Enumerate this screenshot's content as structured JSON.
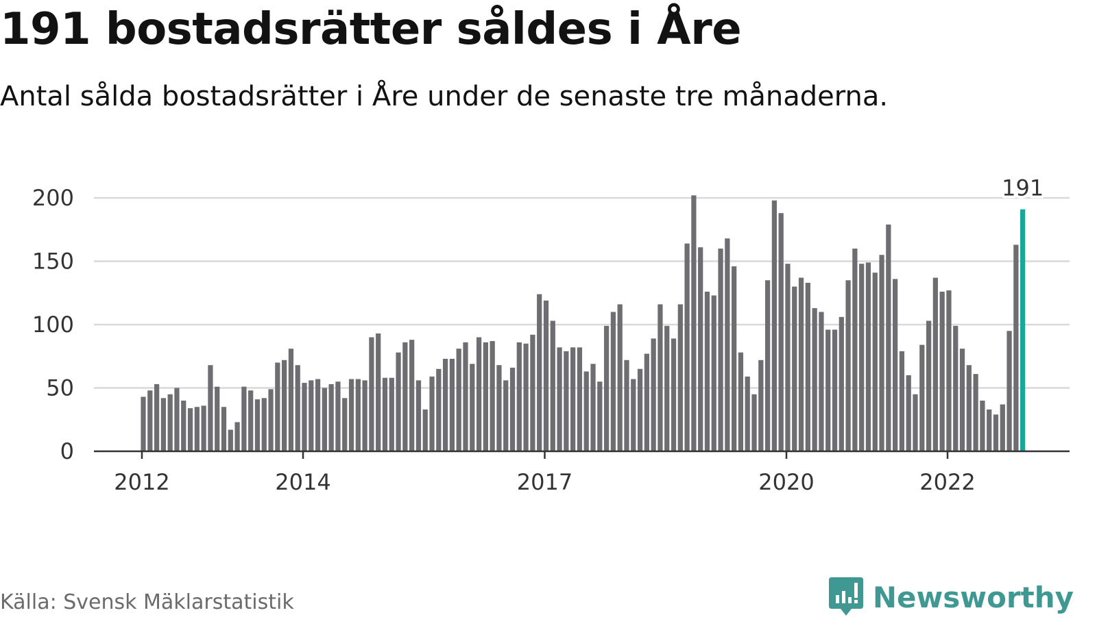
{
  "title": "191 bostadsrätter såldes i Åre",
  "subtitle": "Antal sålda bostadsrätter i Åre under de senaste tre månaderna.",
  "source": "Källa: Svensk Mäklarstatistik",
  "brand": "Newsworthy",
  "colors": {
    "bar": "#6e6d72",
    "highlight": "#17a79b",
    "grid": "#d9d9d9",
    "axis": "#333333",
    "brand": "#3f9992"
  },
  "chart_data": {
    "type": "bar",
    "title": "191 bostadsrätter såldes i Åre",
    "subtitle": "Antal sålda bostadsrätter i Åre under de senaste tre månaderna.",
    "ylim": [
      0,
      200
    ],
    "yticks": [
      0,
      50,
      100,
      150,
      200
    ],
    "xlim": [
      2011.4,
      2023.5
    ],
    "xticks": [
      {
        "label": "2012",
        "value": 2012
      },
      {
        "label": "2014",
        "value": 2014
      },
      {
        "label": "2017",
        "value": 2017
      },
      {
        "label": "2020",
        "value": 2020
      },
      {
        "label": "2022",
        "value": 2022
      }
    ],
    "grid": true,
    "x_start": 2012.0,
    "x_step": 0.08333,
    "values": [
      43,
      48,
      53,
      42,
      45,
      50,
      40,
      34,
      35,
      36,
      68,
      51,
      35,
      17,
      23,
      51,
      48,
      41,
      42,
      49,
      70,
      72,
      81,
      68,
      54,
      56,
      57,
      50,
      53,
      55,
      42,
      57,
      57,
      56,
      90,
      93,
      58,
      58,
      78,
      86,
      88,
      56,
      33,
      59,
      65,
      73,
      73,
      81,
      86,
      69,
      90,
      86,
      87,
      68,
      56,
      66,
      86,
      85,
      92,
      124,
      119,
      103,
      82,
      79,
      82,
      82,
      63,
      69,
      55,
      99,
      110,
      116,
      72,
      57,
      65,
      77,
      89,
      116,
      99,
      89,
      116,
      164,
      202,
      161,
      126,
      123,
      160,
      168,
      146,
      78,
      59,
      45,
      72,
      135,
      198,
      188,
      148,
      130,
      137,
      133,
      113,
      110,
      96,
      96,
      106,
      135,
      160,
      148,
      149,
      141,
      155,
      179,
      136,
      79,
      60,
      45,
      84,
      103,
      137,
      126,
      127,
      99,
      81,
      68,
      61,
      40,
      33,
      29,
      37,
      95,
      163,
      191
    ],
    "highlight_index": 131,
    "highlight_label": "191"
  }
}
